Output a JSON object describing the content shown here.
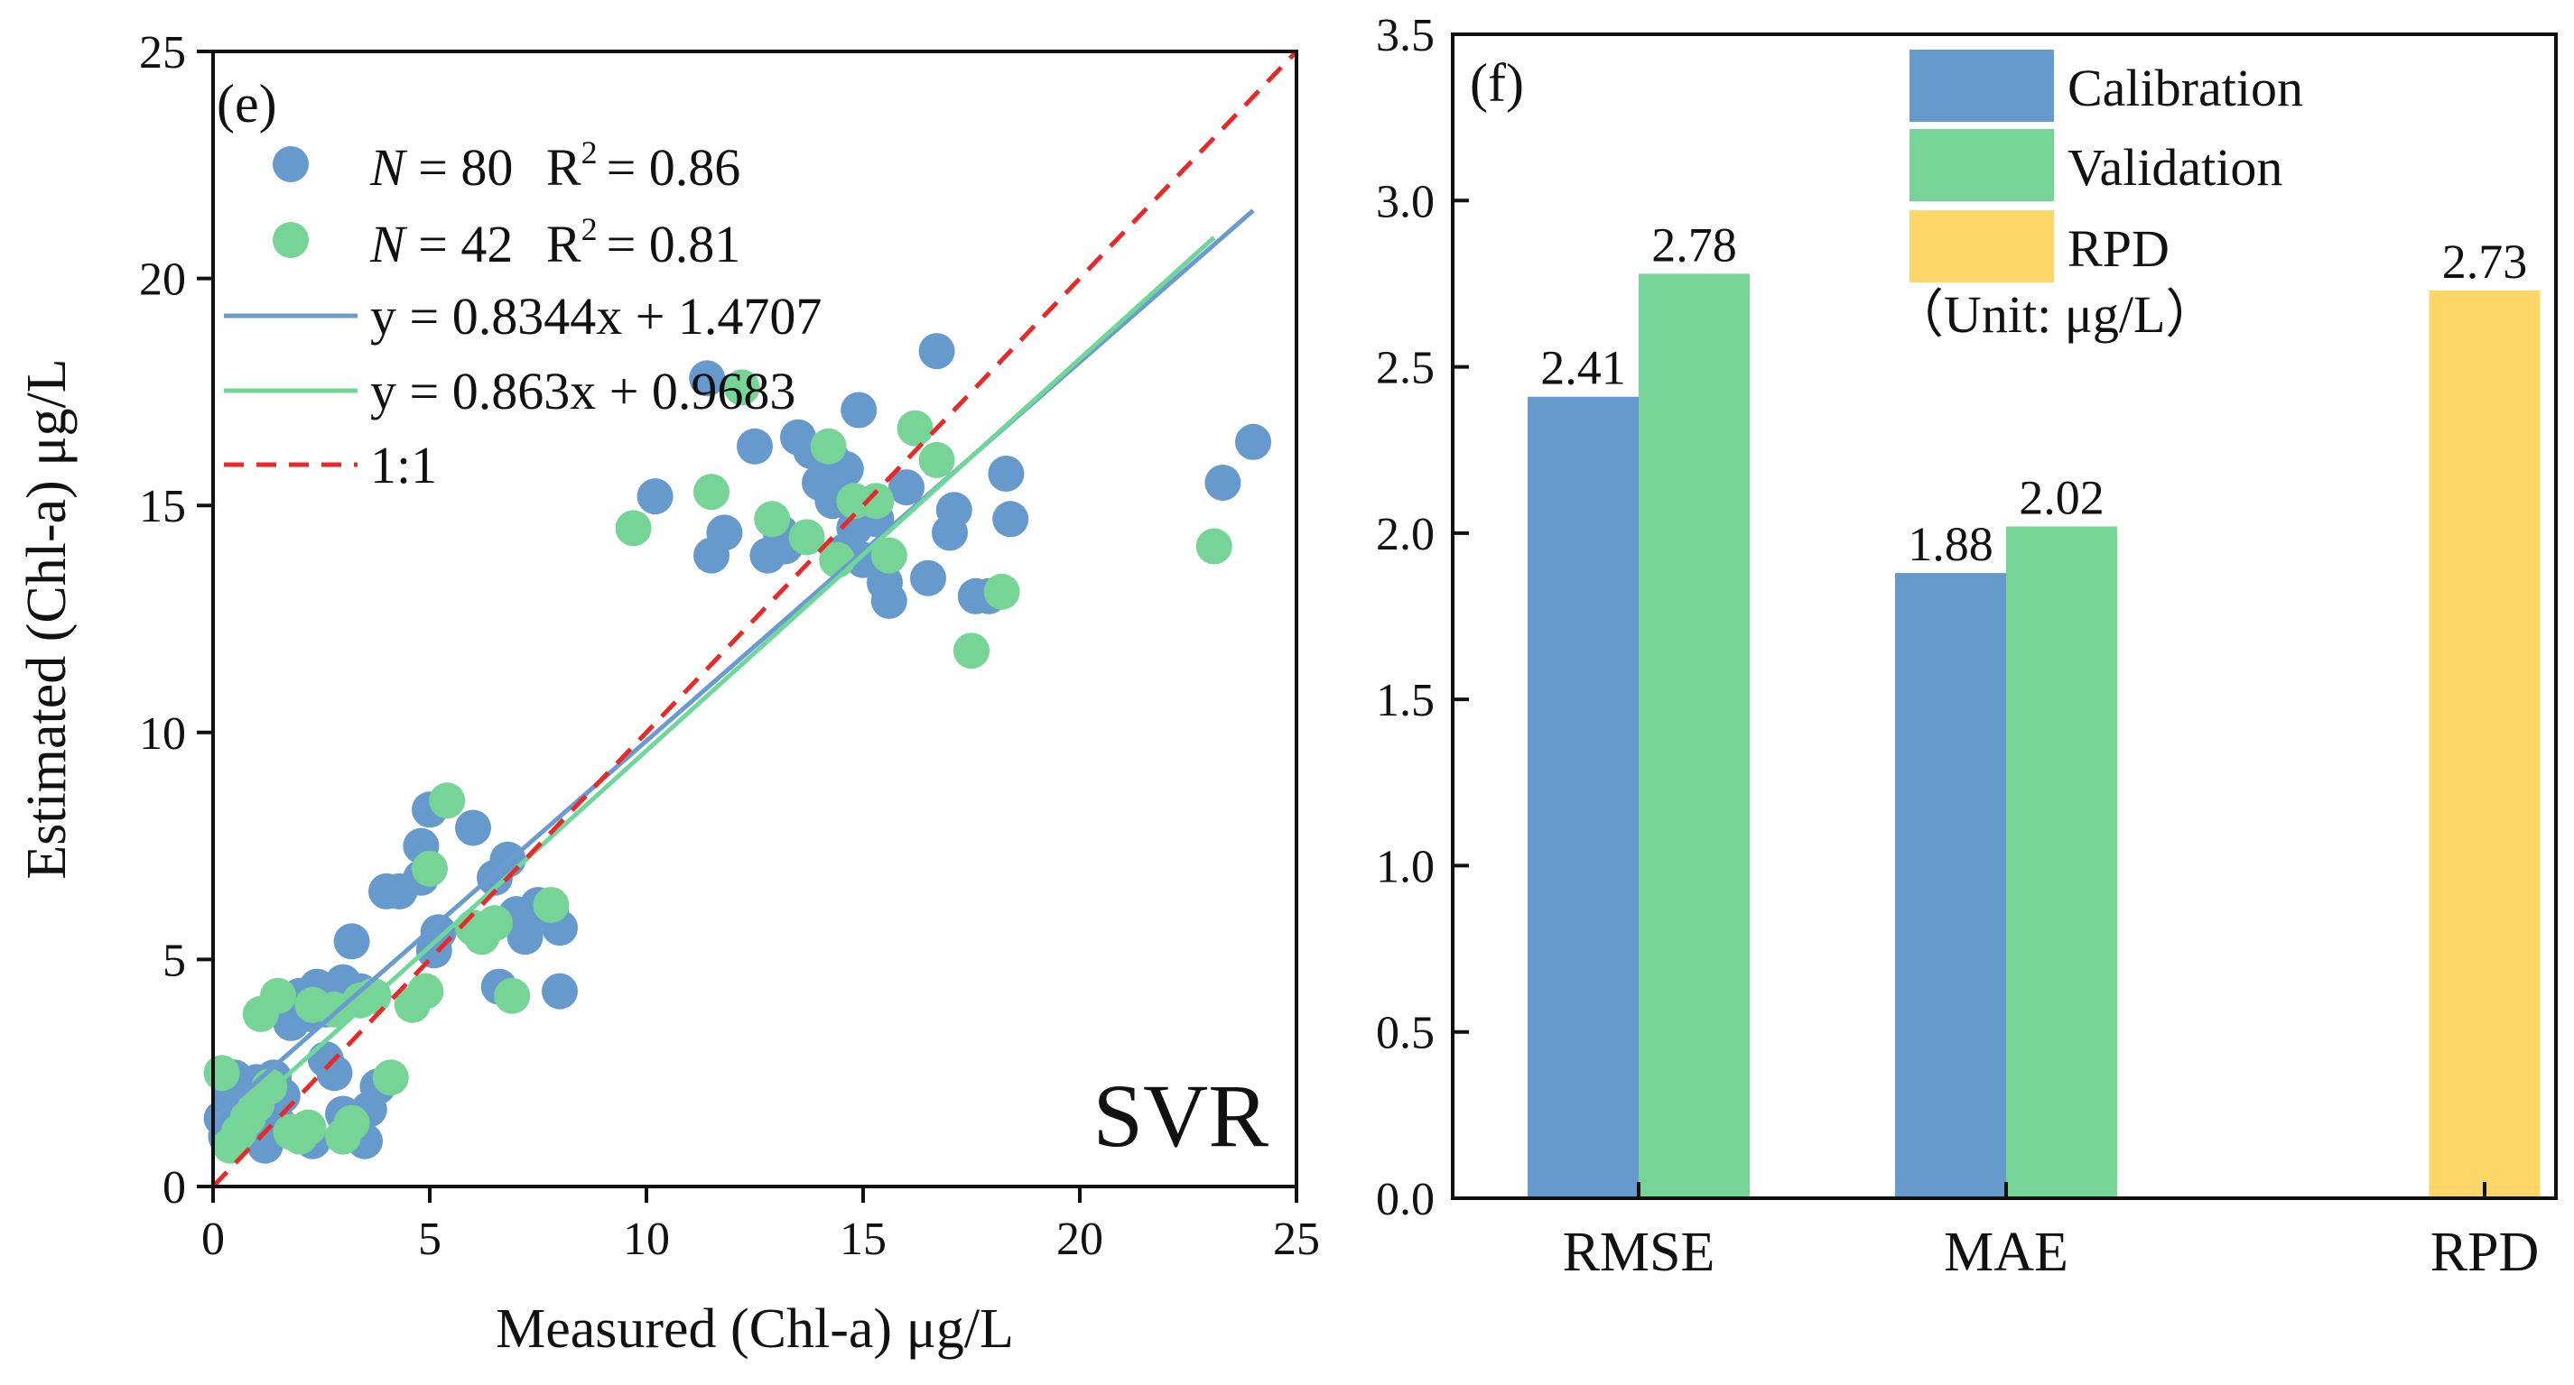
{
  "colors": {
    "calibration": "#6699CC",
    "validation": "#77D497",
    "rpd": "#FCD666",
    "fit_calibration": "#6A9BCF",
    "fit_validation": "#6FD79A",
    "one_to_one": "#E8292A"
  },
  "chart_data": [
    {
      "type": "scatter",
      "panel_label": "(e)",
      "annotation": "SVR",
      "xlabel": "Measured (Chl-a) μg/L",
      "ylabel": "Estimated (Chl-a) μg/L",
      "xlim": [
        0,
        25
      ],
      "ylim": [
        0,
        25
      ],
      "xticks": [
        0,
        5,
        10,
        15,
        20,
        25
      ],
      "yticks": [
        0,
        5,
        10,
        15,
        20,
        25
      ],
      "legend": {
        "calibration": {
          "n_label": "N",
          "n_value": "= 80",
          "r2_label": "R",
          "r2_exp": "2",
          "r2_value": "= 0.86"
        },
        "validation": {
          "n_label": "N",
          "n_value": "= 42",
          "r2_label": "R",
          "r2_exp": "2",
          "r2_value": "= 0.81"
        },
        "fit_calibration": "y = 0.8344x + 1.4707",
        "fit_validation": "y = 0.863x + 0.9683",
        "one_to_one": "1:1"
      },
      "fit_lines": [
        {
          "name": "calibration",
          "slope": 0.8344,
          "intercept": 1.4707,
          "x_range": [
            0,
            24
          ]
        },
        {
          "name": "validation",
          "slope": 0.863,
          "intercept": 0.9683,
          "x_range": [
            0,
            23.1
          ]
        },
        {
          "name": "one_to_one",
          "slope": 1,
          "intercept": 0,
          "x_range": [
            0,
            25
          ]
        }
      ],
      "series": [
        {
          "name": "Calibration",
          "points": [
            [
              0.2,
              1.5
            ],
            [
              0.4,
              2.0
            ],
            [
              0.6,
              1.3
            ],
            [
              0.8,
              1.8
            ],
            [
              1.0,
              2.3
            ],
            [
              1.2,
              2.1
            ],
            [
              1.4,
              2.4
            ],
            [
              1.6,
              2.0
            ],
            [
              1.8,
              3.6
            ],
            [
              2.0,
              4.2
            ],
            [
              2.2,
              3.8
            ],
            [
              2.4,
              4.4
            ],
            [
              2.6,
              3.9
            ],
            [
              2.8,
              2.5
            ],
            [
              3.0,
              4.5
            ],
            [
              3.2,
              5.4
            ],
            [
              3.4,
              4.3
            ],
            [
              3.0,
              1.6
            ],
            [
              3.6,
              1.7
            ],
            [
              3.8,
              2.2
            ],
            [
              1.2,
              0.9
            ],
            [
              3.5,
              1.0
            ],
            [
              2.0,
              1.2
            ],
            [
              4.0,
              6.5
            ],
            [
              4.3,
              6.5
            ],
            [
              4.8,
              7.5
            ],
            [
              5.0,
              8.3
            ],
            [
              4.8,
              6.8
            ],
            [
              5.2,
              5.6
            ],
            [
              6.0,
              7.9
            ],
            [
              6.5,
              6.8
            ],
            [
              6.8,
              7.2
            ],
            [
              6.6,
              4.4
            ],
            [
              7.2,
              5.5
            ],
            [
              7.5,
              6.2
            ],
            [
              8.0,
              5.7
            ],
            [
              8.0,
              4.3
            ],
            [
              7.8,
              6.0
            ],
            [
              10.2,
              15.2
            ],
            [
              11.5,
              13.9
            ],
            [
              11.8,
              14.4
            ],
            [
              11.4,
              17.8
            ],
            [
              12.5,
              16.3
            ],
            [
              12.8,
              13.9
            ],
            [
              13.2,
              14.1
            ],
            [
              13.5,
              16.5
            ],
            [
              14.0,
              15.5
            ],
            [
              14.3,
              15.1
            ],
            [
              14.6,
              15.8
            ],
            [
              14.8,
              14.5
            ],
            [
              15.0,
              13.8
            ],
            [
              14.9,
              17.1
            ],
            [
              15.5,
              13.3
            ],
            [
              15.6,
              12.9
            ],
            [
              16.0,
              15.4
            ],
            [
              16.5,
              13.4
            ],
            [
              16.7,
              18.4
            ],
            [
              17.0,
              14.4
            ],
            [
              17.1,
              14.9
            ],
            [
              17.6,
              13.0
            ],
            [
              17.9,
              13.0
            ],
            [
              18.3,
              15.7
            ],
            [
              18.4,
              14.7
            ],
            [
              14.3,
              16.0
            ],
            [
              14.6,
              14.0
            ],
            [
              13.1,
              14.4
            ],
            [
              13.8,
              16.2
            ],
            [
              0.3,
              1.1
            ],
            [
              0.9,
              2.2
            ],
            [
              1.5,
              1.4
            ],
            [
              2.3,
              1.0
            ],
            [
              2.6,
              2.8
            ],
            [
              1.1,
              1.6
            ],
            [
              0.5,
              2.4
            ],
            [
              4.9,
              4.3
            ],
            [
              5.1,
              5.2
            ],
            [
              7.0,
              6.0
            ],
            [
              23.3,
              15.5
            ],
            [
              24.0,
              16.4
            ],
            [
              15.3,
              14.7
            ]
          ]
        },
        {
          "name": "Validation",
          "points": [
            [
              0.2,
              2.5
            ],
            [
              0.4,
              0.9
            ],
            [
              0.8,
              1.5
            ],
            [
              1.0,
              1.8
            ],
            [
              1.1,
              3.8
            ],
            [
              1.5,
              4.2
            ],
            [
              1.8,
              1.2
            ],
            [
              2.0,
              1.1
            ],
            [
              2.2,
              1.3
            ],
            [
              2.3,
              4.0
            ],
            [
              3.0,
              1.1
            ],
            [
              3.2,
              1.4
            ],
            [
              3.4,
              4.1
            ],
            [
              3.7,
              4.2
            ],
            [
              4.1,
              2.4
            ],
            [
              4.6,
              4.0
            ],
            [
              4.9,
              4.3
            ],
            [
              5.0,
              7.0
            ],
            [
              5.4,
              8.5
            ],
            [
              6.2,
              5.5
            ],
            [
              6.5,
              5.8
            ],
            [
              6.9,
              4.2
            ],
            [
              7.8,
              6.2
            ],
            [
              9.7,
              14.5
            ],
            [
              11.5,
              15.3
            ],
            [
              12.2,
              17.6
            ],
            [
              12.9,
              14.7
            ],
            [
              13.7,
              14.3
            ],
            [
              14.2,
              16.3
            ],
            [
              14.4,
              13.8
            ],
            [
              14.8,
              15.1
            ],
            [
              15.3,
              15.1
            ],
            [
              15.6,
              13.9
            ],
            [
              16.2,
              16.7
            ],
            [
              16.7,
              16.0
            ],
            [
              17.5,
              11.8
            ],
            [
              18.2,
              13.1
            ],
            [
              23.1,
              14.1
            ],
            [
              0.6,
              1.2
            ],
            [
              2.8,
              3.9
            ],
            [
              1.3,
              2.2
            ],
            [
              6.0,
              5.7
            ]
          ]
        }
      ]
    },
    {
      "type": "bar",
      "panel_label": "(f)",
      "categories": [
        "RMSE",
        "MAE",
        "RPD"
      ],
      "ylim": [
        0,
        3.5
      ],
      "yticks": [
        "0.0",
        "0.5",
        "1.0",
        "1.5",
        "2.0",
        "2.5",
        "3.0",
        "3.5"
      ],
      "legend": {
        "calibration": "Calibration",
        "validation": "Validation",
        "rpd": "RPD",
        "unit_note": "（Unit: μg/L）"
      },
      "series": [
        {
          "name": "Calibration",
          "values": [
            2.41,
            1.88,
            null
          ],
          "labels": [
            "2.41",
            "1.88",
            ""
          ]
        },
        {
          "name": "Validation",
          "values": [
            2.78,
            2.02,
            null
          ],
          "labels": [
            "2.78",
            "2.02",
            ""
          ]
        },
        {
          "name": "RPD",
          "values": [
            null,
            null,
            2.73
          ],
          "labels": [
            "",
            "",
            "2.73"
          ]
        }
      ]
    }
  ]
}
